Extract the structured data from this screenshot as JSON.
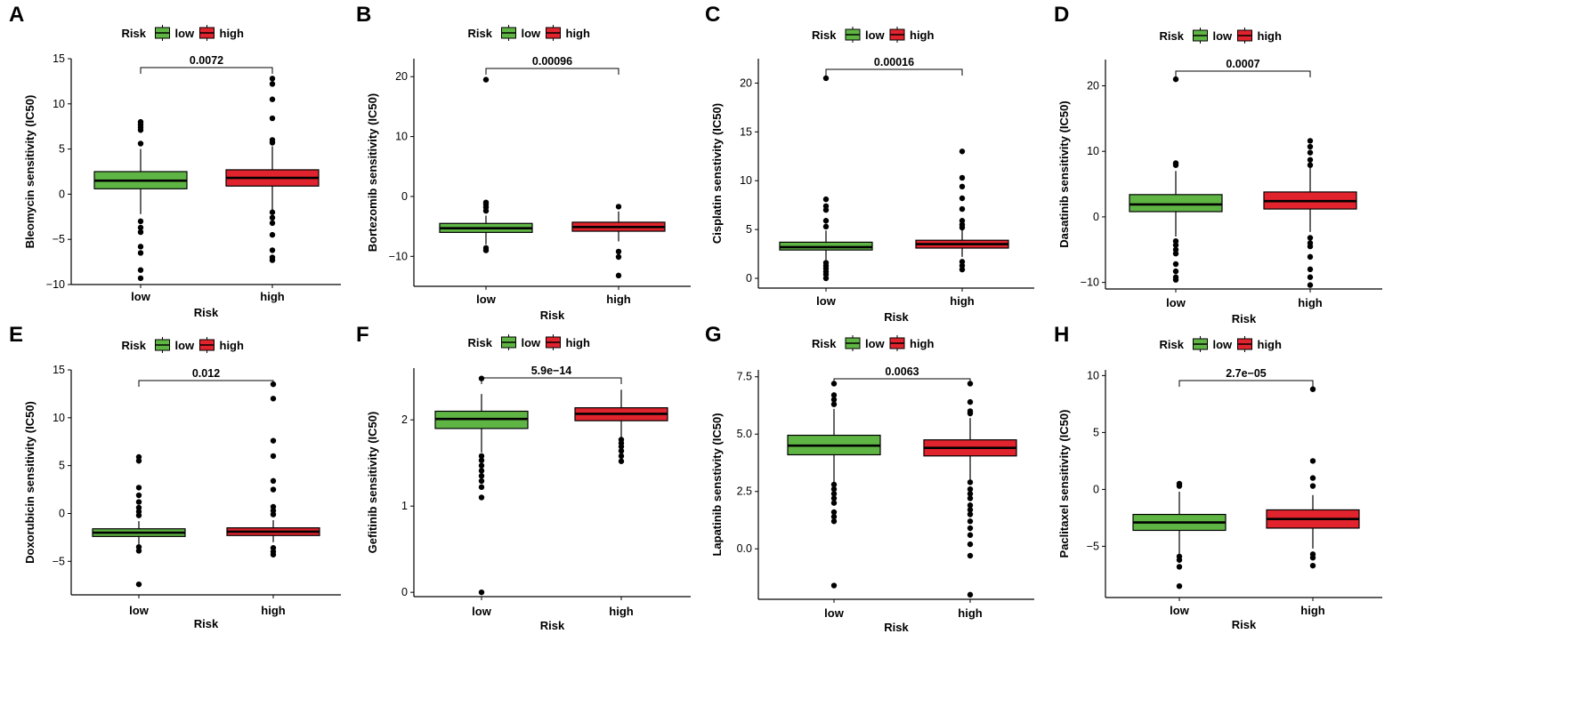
{
  "figure": {
    "legend_title": "Risk",
    "groups": [
      "low",
      "high"
    ],
    "colors": {
      "low": "#5fb544",
      "high": "#e0232d"
    },
    "xlabel": "Risk"
  },
  "chart_data": [
    {
      "type": "boxplot",
      "letter": "A",
      "ylabel": "Bleomycin sensitivity (IC50)",
      "categories": [
        "low",
        "high"
      ],
      "ylim": [
        -10,
        15
      ],
      "yticks": [
        -10,
        -5,
        0,
        5,
        10,
        15
      ],
      "ytick_labels": [
        "−10",
        "−5",
        "0",
        "5",
        "10",
        "15"
      ],
      "pvalue": "0.0072",
      "boxes": [
        {
          "group": "low",
          "q1": 0.6,
          "median": 1.5,
          "q3": 2.5,
          "whisker_low": -2.2,
          "whisker_high": 5.0,
          "outliers": [
            8.0,
            7.7,
            7.4,
            7.1,
            5.6,
            -3.0,
            -3.7,
            -4.2,
            -5.8,
            -6.5,
            -8.4,
            -9.3
          ]
        },
        {
          "group": "high",
          "q1": 0.9,
          "median": 1.8,
          "q3": 2.7,
          "whisker_low": -1.8,
          "whisker_high": 5.3,
          "outliers": [
            12.8,
            12.2,
            10.5,
            8.4,
            6.0,
            5.7,
            -2.0,
            -2.6,
            -3.2,
            -4.5,
            -6.2,
            -7.0,
            -7.3
          ]
        }
      ]
    },
    {
      "type": "boxplot",
      "letter": "B",
      "ylabel": "Bortezomib sensitivity (IC50)",
      "categories": [
        "low",
        "high"
      ],
      "ylim": [
        -15,
        23
      ],
      "yticks": [
        -10,
        0,
        10,
        20
      ],
      "ytick_labels": [
        "−10",
        "0",
        "10",
        "20"
      ],
      "pvalue": "0.00096",
      "boxes": [
        {
          "group": "low",
          "q1": -6.0,
          "median": -5.3,
          "q3": -4.5,
          "whisker_low": -8.0,
          "whisker_high": -3.2,
          "outliers": [
            19.5,
            -1.0,
            -1.3,
            -1.8,
            -2.4,
            -8.6,
            -9.0
          ]
        },
        {
          "group": "high",
          "q1": -5.8,
          "median": -5.1,
          "q3": -4.3,
          "whisker_low": -7.5,
          "whisker_high": -2.5,
          "outliers": [
            -1.7,
            -9.2,
            -10.1,
            -13.2
          ]
        }
      ]
    },
    {
      "type": "boxplot",
      "letter": "C",
      "ylabel": "Cisplatin senstivity (IC50)",
      "categories": [
        "low",
        "high"
      ],
      "ylim": [
        -1,
        22.5
      ],
      "yticks": [
        0,
        5,
        10,
        15,
        20
      ],
      "ytick_labels": [
        "0",
        "5",
        "10",
        "15",
        "20"
      ],
      "pvalue": "0.00016",
      "boxes": [
        {
          "group": "low",
          "q1": 2.9,
          "median": 3.2,
          "q3": 3.7,
          "whisker_low": 1.9,
          "whisker_high": 4.9,
          "outliers": [
            20.5,
            8.1,
            7.4,
            7.0,
            5.9,
            5.3,
            1.6,
            1.3,
            1.0,
            0.7,
            0.4,
            0.0
          ]
        },
        {
          "group": "high",
          "q1": 3.1,
          "median": 3.5,
          "q3": 3.9,
          "whisker_low": 2.2,
          "whisker_high": 5.0,
          "outliers": [
            13.0,
            10.3,
            9.4,
            8.2,
            7.1,
            5.9,
            5.5,
            5.2,
            1.7,
            1.3,
            0.9
          ]
        }
      ]
    },
    {
      "type": "boxplot",
      "letter": "D",
      "ylabel": "Dasatinib sensitivity (IC50)",
      "categories": [
        "low",
        "high"
      ],
      "ylim": [
        -11,
        24
      ],
      "yticks": [
        -10,
        0,
        10,
        20
      ],
      "ytick_labels": [
        "−10",
        "0",
        "10",
        "20"
      ],
      "pvalue": "0.0007",
      "boxes": [
        {
          "group": "low",
          "q1": 0.8,
          "median": 1.9,
          "q3": 3.4,
          "whisker_low": -3.0,
          "whisker_high": 7.0,
          "outliers": [
            21.0,
            8.2,
            7.9,
            -3.7,
            -4.3,
            -5.0,
            -5.6,
            -7.2,
            -8.3,
            -9.2,
            -9.6
          ]
        },
        {
          "group": "high",
          "q1": 1.2,
          "median": 2.4,
          "q3": 3.8,
          "whisker_low": -2.3,
          "whisker_high": 7.5,
          "outliers": [
            11.6,
            10.7,
            9.8,
            8.7,
            7.9,
            -3.2,
            -4.0,
            -4.5,
            -6.1,
            -8.0,
            -9.2,
            -10.4
          ]
        }
      ]
    },
    {
      "type": "boxplot",
      "letter": "E",
      "ylabel": "Doxorubicin sensitivity (IC50)",
      "categories": [
        "low",
        "high"
      ],
      "ylim": [
        -8.5,
        15
      ],
      "yticks": [
        -5,
        0,
        5,
        10,
        15
      ],
      "ytick_labels": [
        "−5",
        "0",
        "5",
        "10",
        "15"
      ],
      "pvalue": "0.012",
      "boxes": [
        {
          "group": "low",
          "q1": -2.4,
          "median": -2.0,
          "q3": -1.6,
          "whisker_low": -3.2,
          "whisker_high": -0.8,
          "outliers": [
            5.9,
            5.5,
            2.7,
            1.9,
            1.2,
            0.6,
            0.2,
            -0.2,
            -3.5,
            -3.9,
            -7.4
          ]
        },
        {
          "group": "high",
          "q1": -2.3,
          "median": -1.9,
          "q3": -1.5,
          "whisker_low": -3.0,
          "whisker_high": -0.7,
          "outliers": [
            13.5,
            12.0,
            7.6,
            6.0,
            3.4,
            2.5,
            0.7,
            0.3,
            -0.1,
            -3.6,
            -4.0,
            -4.3
          ]
        }
      ]
    },
    {
      "type": "boxplot",
      "letter": "F",
      "ylabel": "Gefitinib sensitivity (IC50)",
      "categories": [
        "low",
        "high"
      ],
      "ylim": [
        -0.05,
        2.6
      ],
      "yticks": [
        0,
        1,
        2
      ],
      "ytick_labels": [
        "0",
        "1",
        "2"
      ],
      "pvalue": "5.9e−14",
      "boxes": [
        {
          "group": "low",
          "q1": 1.9,
          "median": 2.01,
          "q3": 2.1,
          "whisker_low": 1.62,
          "whisker_high": 2.3,
          "outliers": [
            2.48,
            1.58,
            1.53,
            1.47,
            1.41,
            1.35,
            1.29,
            1.22,
            1.1,
            0.0
          ]
        },
        {
          "group": "high",
          "q1": 1.99,
          "median": 2.07,
          "q3": 2.14,
          "whisker_low": 1.8,
          "whisker_high": 2.35,
          "outliers": [
            1.77,
            1.73,
            1.69,
            1.64,
            1.58,
            1.52
          ]
        }
      ]
    },
    {
      "type": "boxplot",
      "letter": "G",
      "ylabel": "Lapatinib senstivity (IC50)",
      "categories": [
        "low",
        "high"
      ],
      "ylim": [
        -2.2,
        7.8
      ],
      "yticks": [
        0.0,
        2.5,
        5.0,
        7.5
      ],
      "ytick_labels": [
        "0.0",
        "2.5",
        "5.0",
        "7.5"
      ],
      "pvalue": "0.0063",
      "boxes": [
        {
          "group": "low",
          "q1": 4.1,
          "median": 4.5,
          "q3": 4.95,
          "whisker_low": 2.9,
          "whisker_high": 6.1,
          "outliers": [
            7.2,
            6.7,
            6.5,
            6.3,
            2.8,
            2.6,
            2.4,
            2.2,
            2.0,
            1.6,
            1.4,
            1.2,
            -1.6
          ]
        },
        {
          "group": "high",
          "q1": 4.05,
          "median": 4.4,
          "q3": 4.75,
          "whisker_low": 3.0,
          "whisker_high": 5.7,
          "outliers": [
            7.2,
            6.4,
            6.0,
            5.9,
            2.9,
            2.6,
            2.4,
            2.2,
            1.9,
            1.7,
            1.5,
            1.2,
            0.9,
            0.6,
            0.2,
            -0.3,
            -2.0
          ]
        }
      ]
    },
    {
      "type": "boxplot",
      "letter": "H",
      "ylabel": "Paclitaxel sensitivity (IC50)",
      "categories": [
        "low",
        "high"
      ],
      "ylim": [
        -9.5,
        10.5
      ],
      "yticks": [
        -5,
        0,
        5,
        10
      ],
      "ytick_labels": [
        "−5",
        "0",
        "5",
        "10"
      ],
      "pvalue": "2.7e−05",
      "boxes": [
        {
          "group": "low",
          "q1": -3.6,
          "median": -2.9,
          "q3": -2.2,
          "whisker_low": -5.7,
          "whisker_high": -0.2,
          "outliers": [
            0.5,
            0.3,
            -5.9,
            -6.2,
            -6.8,
            -8.5
          ]
        },
        {
          "group": "high",
          "q1": -3.4,
          "median": -2.6,
          "q3": -1.8,
          "whisker_low": -5.2,
          "whisker_high": -0.5,
          "outliers": [
            8.8,
            2.5,
            1.0,
            0.3,
            -5.7,
            -6.0,
            -6.7
          ]
        }
      ]
    }
  ]
}
